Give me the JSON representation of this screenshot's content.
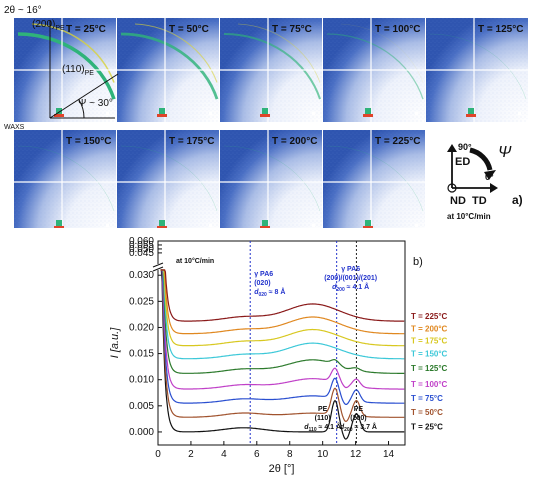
{
  "panel_a": {
    "label": "a)",
    "annotations": {
      "two_theta": "2θ ~ 16°",
      "plane_200": "(200)",
      "plane_200_sub": "PE",
      "plane_110": "(110)",
      "plane_110_sub": "PE",
      "psi": "Ψ ~ 30°",
      "waxs": "WAXS",
      "rate": "at 10°C/min"
    },
    "temperatures": [
      "T = 25°C",
      "T = 50°C",
      "T = 75°C",
      "T = 100°C",
      "T = 125°C",
      "T = 150°C",
      "T = 175°C",
      "T = 200°C",
      "T = 225°C"
    ],
    "axes_icon": {
      "ed": "ED",
      "nd": "ND",
      "td": "TD",
      "deg90": "90°",
      "deg0": "0°",
      "psi": "Ψ"
    },
    "colors": {
      "scatter_blue": "#4a6fc4",
      "ring_green": "#2fb37a",
      "ring_yellow": "#d8d23a",
      "beam_red": "#e0442a"
    }
  },
  "panel_b": {
    "label": "b)",
    "rate_label": "at 10°C/min",
    "annotations": [
      {
        "lines": [
          "γ PA6",
          "(020)"
        ],
        "d_label": "d",
        "d_sub": "020",
        "d_value": " ≈ 8 Å",
        "x": 5.6
      },
      {
        "lines": [
          "γ PA6",
          "(200)/(001)/(201)"
        ],
        "d_label": "d",
        "d_sub": "200",
        "d_value": " ≈ 4.1 Å",
        "x": 10.9
      },
      {
        "lines": [
          "PE",
          "(110)"
        ],
        "d_label": "d",
        "d_sub": "110",
        "d_value": " ≈ 4.1 Å",
        "x": 10.8
      },
      {
        "lines": [
          "PE",
          "(200)"
        ],
        "d_label": "d",
        "d_sub": "200",
        "d_value": " ≈ 3.7 Å",
        "x": 12.0
      }
    ],
    "vlines": [
      {
        "x": 5.6,
        "color": "#2233cc"
      },
      {
        "x": 10.85,
        "color": "#2233cc"
      },
      {
        "x": 12.05,
        "color": "#222222"
      }
    ]
  },
  "chart_data": {
    "type": "line",
    "title": "",
    "xlabel": "2θ [°]",
    "ylabel": "I [a.u.]",
    "xlim": [
      0,
      15
    ],
    "ylim_lower": [
      -0.0025,
      0.031
    ],
    "ylim_upper": [
      0.031,
      0.06
    ],
    "xticks": [
      0,
      2,
      4,
      6,
      8,
      10,
      12,
      14
    ],
    "yticks": [
      0.0,
      0.005,
      0.01,
      0.015,
      0.02,
      0.025,
      0.03,
      0.045,
      0.05,
      0.055,
      0.06
    ],
    "ytick_labels": [
      "0.000",
      "0.005",
      "0.010",
      "0.015",
      "0.020",
      "0.025",
      "0.030",
      "0.045",
      "0.050",
      "0.055",
      "0.060"
    ],
    "legend_placement": "right",
    "series": [
      {
        "name": "T = 25°C",
        "color": "#111111",
        "offset": 0.0,
        "peak_pe110": 0.006,
        "peak_pe200": 0.0035,
        "amor": 0.0
      },
      {
        "name": "T = 50°C",
        "color": "#a0522d",
        "offset": 0.0028,
        "peak_pe110": 0.005,
        "peak_pe200": 0.003,
        "amor": 0.0008
      },
      {
        "name": "T = 75°C",
        "color": "#2a4fd0",
        "offset": 0.0055,
        "peak_pe110": 0.0038,
        "peak_pe200": 0.0022,
        "amor": 0.0014
      },
      {
        "name": "T = 100°C",
        "color": "#c040c8",
        "offset": 0.0082,
        "peak_pe110": 0.0026,
        "peak_pe200": 0.0014,
        "amor": 0.002
      },
      {
        "name": "T = 125°C",
        "color": "#2c7a2c",
        "offset": 0.0112,
        "peak_pe110": 0.0008,
        "peak_pe200": 0.0004,
        "amor": 0.0026
      },
      {
        "name": "T = 150°C",
        "color": "#3cc8d8",
        "offset": 0.014,
        "peak_pe110": 0.0,
        "peak_pe200": 0.0,
        "amor": 0.003
      },
      {
        "name": "T = 175°C",
        "color": "#d8c820",
        "offset": 0.0165,
        "peak_pe110": 0.0,
        "peak_pe200": 0.0,
        "amor": 0.0031
      },
      {
        "name": "T = 200°C",
        "color": "#e08820",
        "offset": 0.0188,
        "peak_pe110": 0.0,
        "peak_pe200": 0.0,
        "amor": 0.0032
      },
      {
        "name": "T = 225°C",
        "color": "#8a1a1a",
        "offset": 0.0212,
        "peak_pe110": 0.0,
        "peak_pe200": 0.0,
        "amor": 0.0033
      }
    ]
  }
}
